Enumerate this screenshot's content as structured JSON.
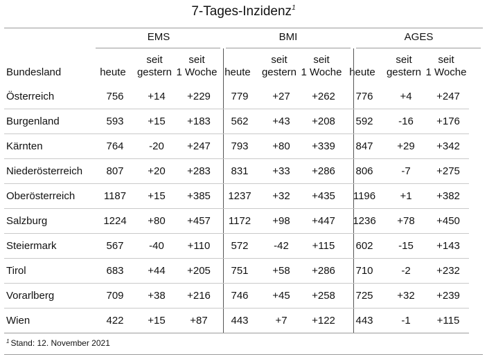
{
  "title": "7-Tages-Inzidenz",
  "title_footnote_mark": "1",
  "row_header": "Bundesland",
  "groups": [
    "EMS",
    "BMI",
    "AGES"
  ],
  "subheaders": [
    {
      "line1": "",
      "line2": "heute"
    },
    {
      "line1": "seit",
      "line2": "gestern"
    },
    {
      "line1": "seit",
      "line2": "1 Woche"
    }
  ],
  "rows": [
    {
      "land": "Österreich",
      "values": [
        "756",
        "+14",
        "+229",
        "779",
        "+27",
        "+262",
        "776",
        "+4",
        "+247"
      ]
    },
    {
      "land": "Burgenland",
      "values": [
        "593",
        "+15",
        "+183",
        "562",
        "+43",
        "+208",
        "592",
        "-16",
        "+176"
      ]
    },
    {
      "land": "Kärnten",
      "values": [
        "764",
        "-20",
        "+247",
        "793",
        "+80",
        "+339",
        "847",
        "+29",
        "+342"
      ]
    },
    {
      "land": "Niederösterreich",
      "values": [
        "807",
        "+20",
        "+283",
        "831",
        "+33",
        "+286",
        "806",
        "-7",
        "+275"
      ]
    },
    {
      "land": "Oberösterreich",
      "values": [
        "1187",
        "+15",
        "+385",
        "1237",
        "+32",
        "+435",
        "1196",
        "+1",
        "+382"
      ]
    },
    {
      "land": "Salzburg",
      "values": [
        "1224",
        "+80",
        "+457",
        "1172",
        "+98",
        "+447",
        "1236",
        "+78",
        "+450"
      ]
    },
    {
      "land": "Steiermark",
      "values": [
        "567",
        "-40",
        "+110",
        "572",
        "-42",
        "+115",
        "602",
        "-15",
        "+143"
      ]
    },
    {
      "land": "Tirol",
      "values": [
        "683",
        "+44",
        "+205",
        "751",
        "+58",
        "+286",
        "710",
        "-2",
        "+232"
      ]
    },
    {
      "land": "Vorarlberg",
      "values": [
        "709",
        "+38",
        "+216",
        "746",
        "+45",
        "+258",
        "725",
        "+32",
        "+239"
      ]
    },
    {
      "land": "Wien",
      "values": [
        "422",
        "+15",
        "+87",
        "443",
        "+7",
        "+122",
        "443",
        "-1",
        "+115"
      ]
    }
  ],
  "footnote_mark": "1",
  "footnote": "Stand: 12. November 2021",
  "colors": {
    "rule": "#9a9a9a",
    "row_divider": "#c9c9c9",
    "group_separator": "#555555"
  }
}
